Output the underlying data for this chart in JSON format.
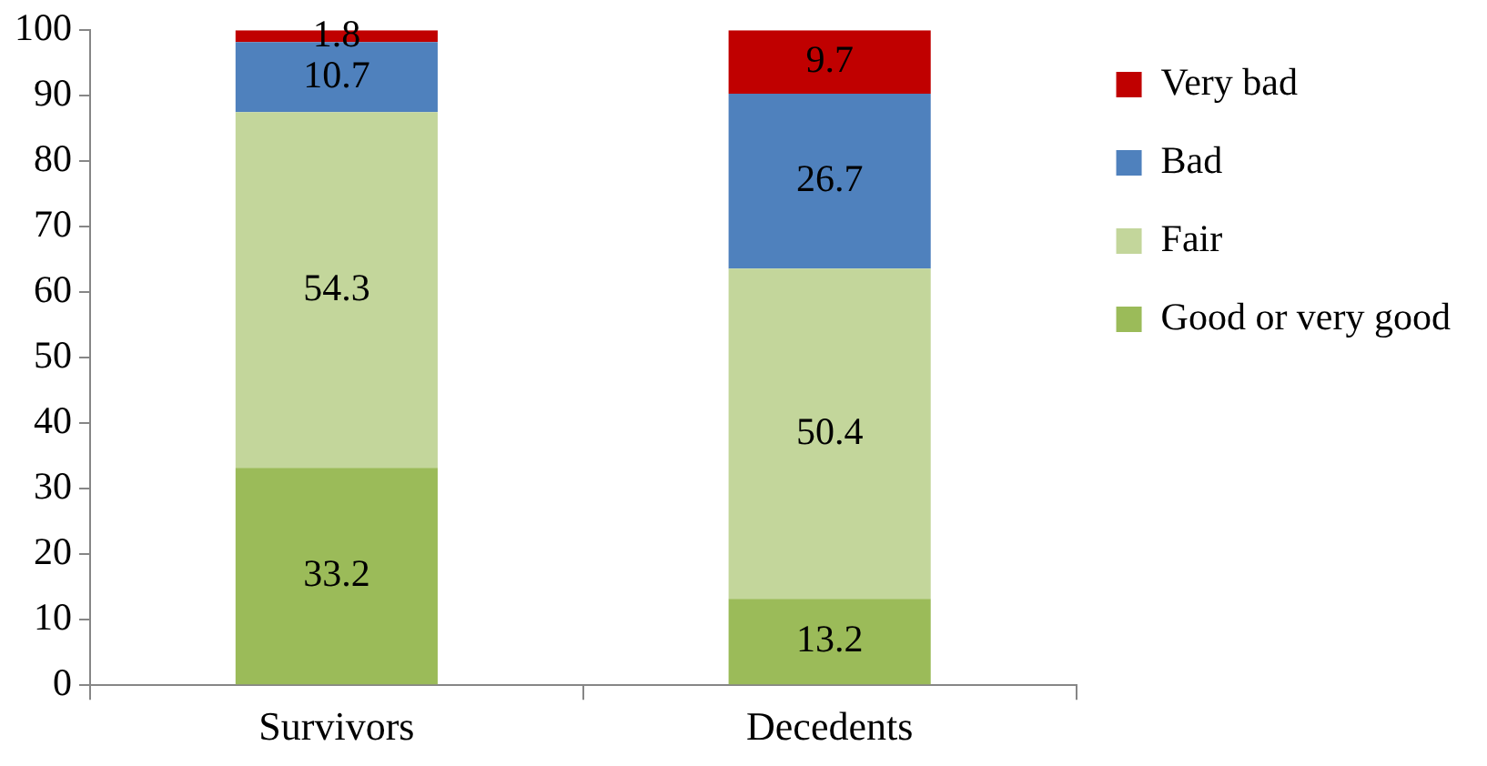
{
  "chart_data": {
    "type": "bar",
    "stacked": true,
    "categories": [
      "Survivors",
      "Decedents"
    ],
    "series": [
      {
        "name": "Good or very good",
        "color": "#9bbb59",
        "values": [
          33.2,
          13.2
        ]
      },
      {
        "name": "Fair",
        "color": "#c3d69b",
        "values": [
          54.3,
          50.4
        ]
      },
      {
        "name": "Bad",
        "color": "#4f81bd",
        "values": [
          10.7,
          26.7
        ]
      },
      {
        "name": "Very bad",
        "color": "#c00000",
        "values": [
          1.8,
          9.7
        ]
      }
    ],
    "ylim": [
      0,
      100
    ],
    "yticks": [
      0,
      10,
      20,
      30,
      40,
      50,
      60,
      70,
      80,
      90,
      100
    ],
    "data_labels": true,
    "legend": "right"
  }
}
